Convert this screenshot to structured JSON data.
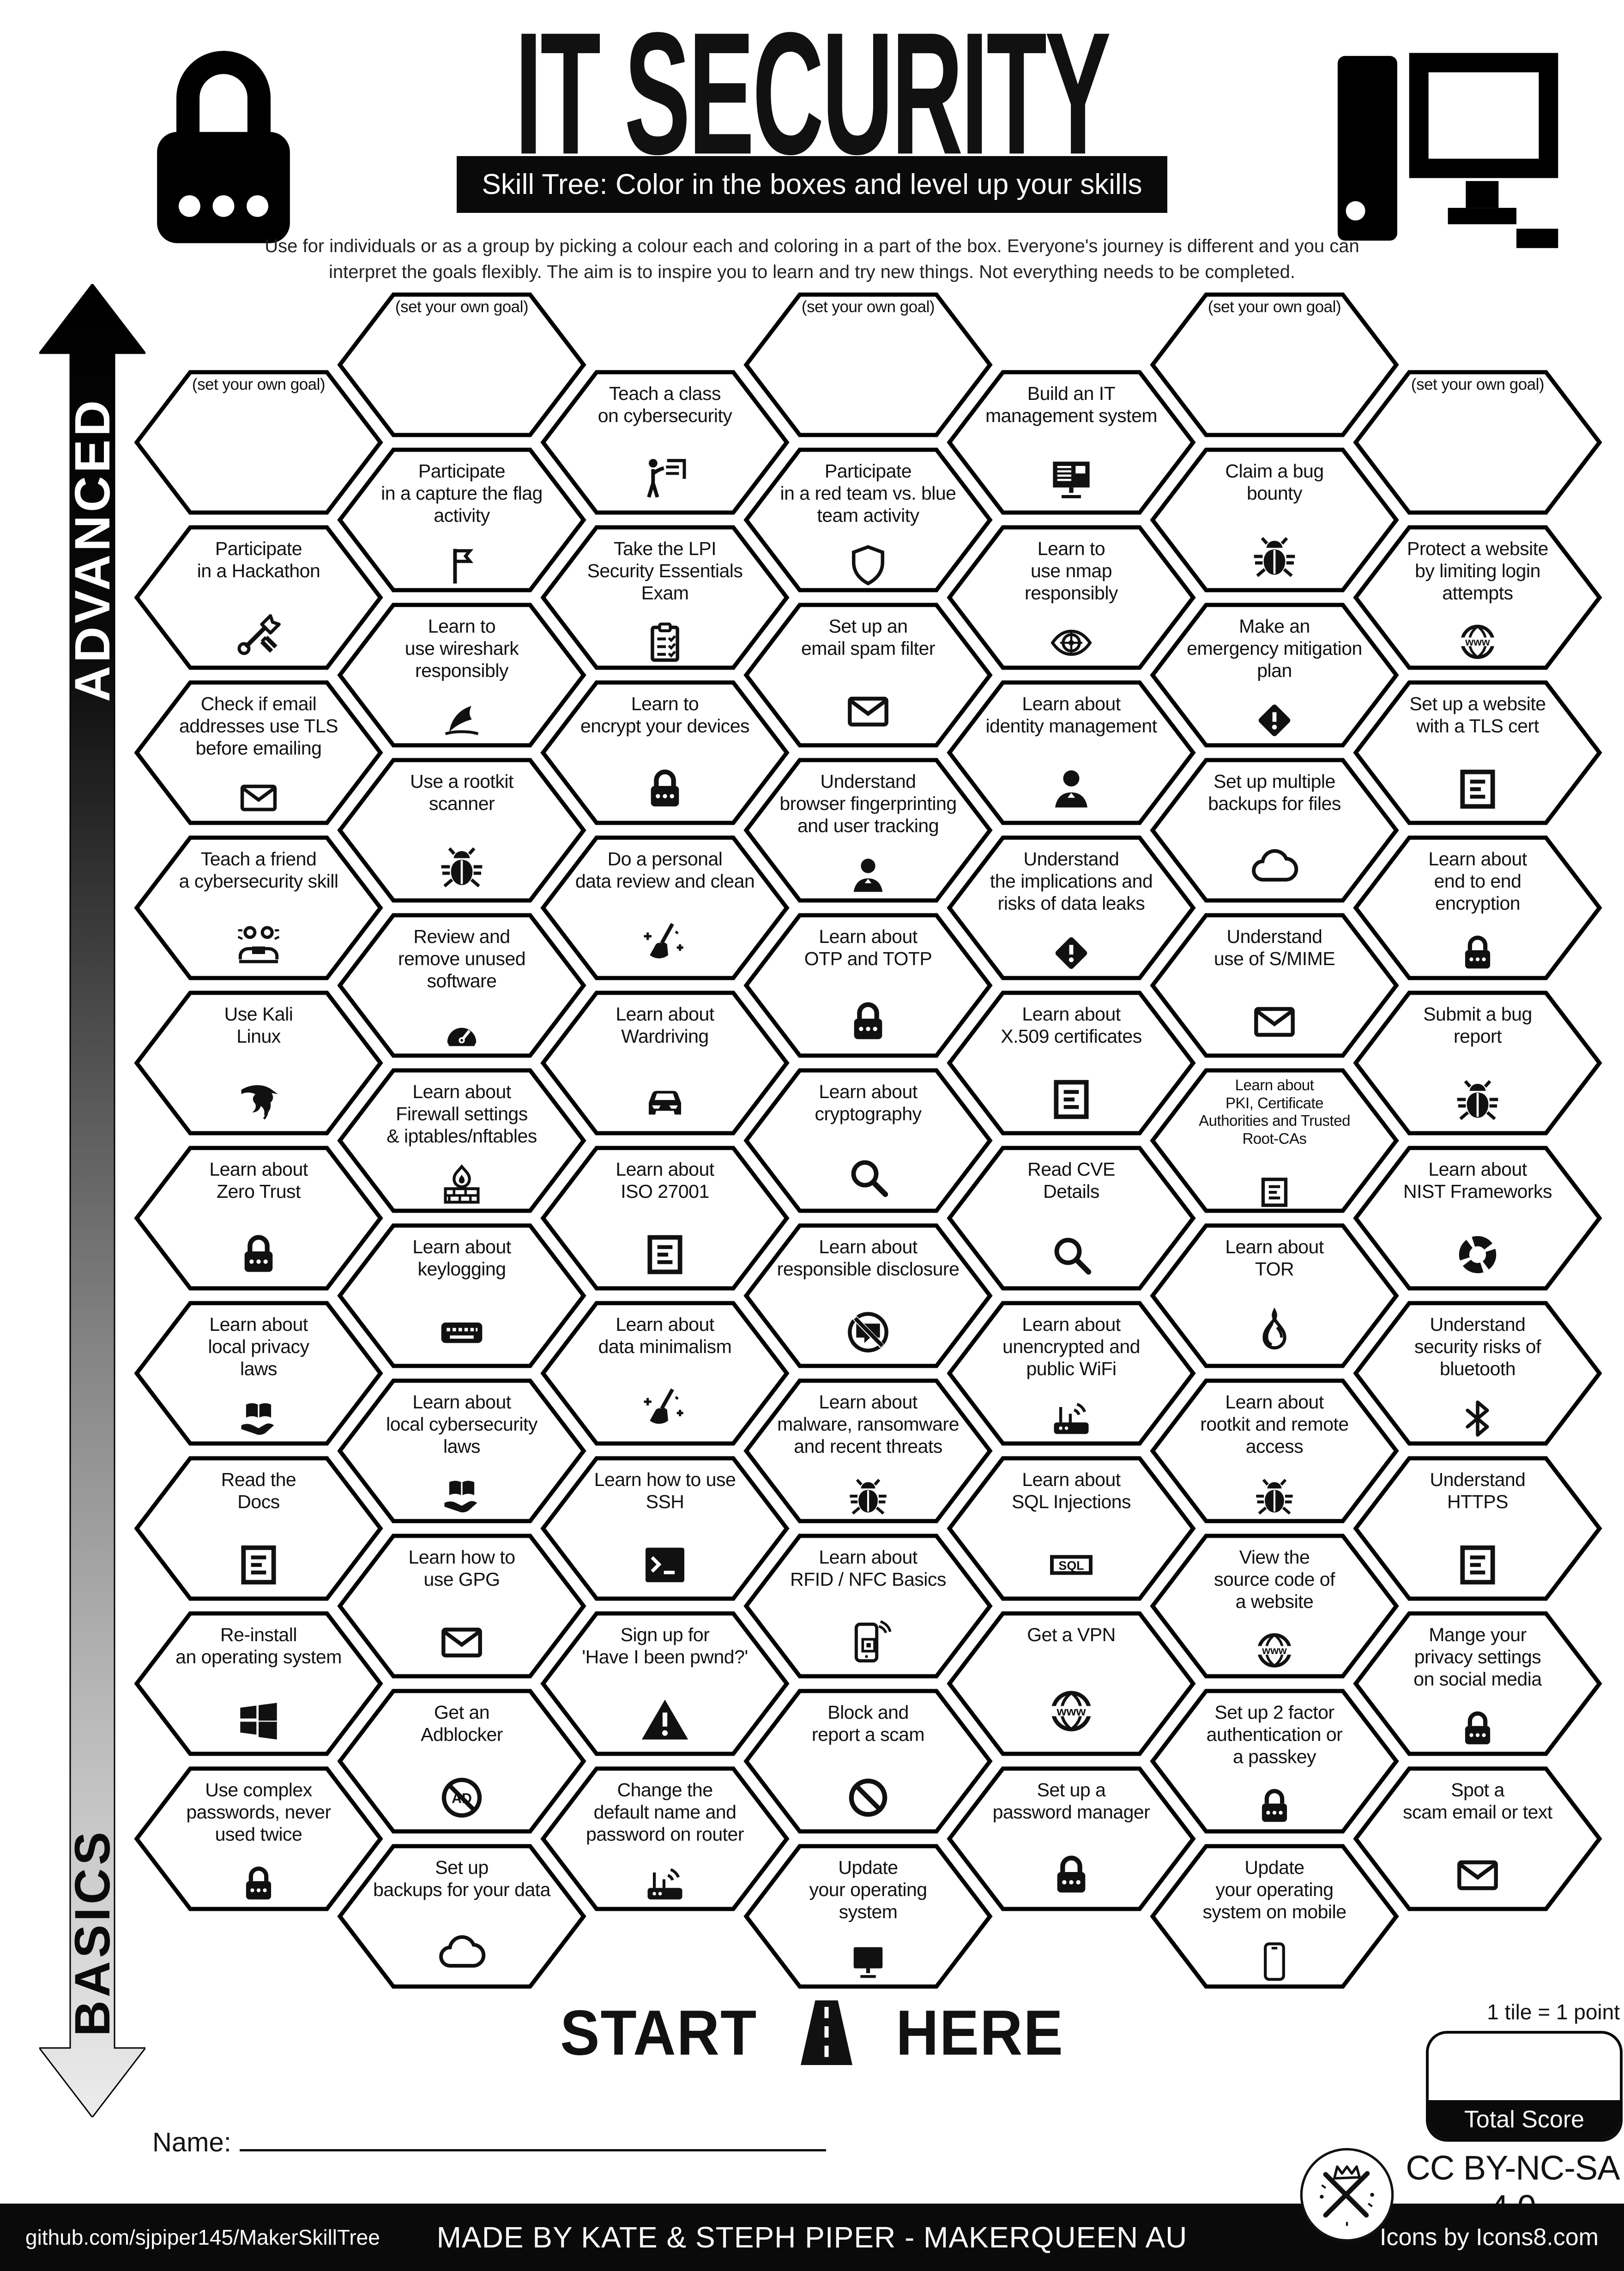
{
  "header": {
    "title": "IT SECURITY",
    "banner": "Skill Tree:  Color in the boxes and level up your skills",
    "description": "Use for individuals or as a group by picking a colour each and coloring in a part of the box.  Everyone's journey is different and you can\ninterpret the goals flexibly.  The aim is to inspire you to learn and try new things. Not everything needs to be completed."
  },
  "axis": {
    "advanced": "ADVANCED",
    "basics": "BASICS"
  },
  "columns": [
    {
      "tiles": [
        {
          "label": "(set your own goal)",
          "goal": true
        },
        {
          "label": "Participate\nin a Hackathon",
          "icon": "tools"
        },
        {
          "label": "Check if email\naddresses use TLS\nbefore emailing",
          "icon": "envelope"
        },
        {
          "label": "Teach a friend\na cybersecurity skill",
          "icon": "people"
        },
        {
          "label": "Use Kali\nLinux",
          "icon": "kali"
        },
        {
          "label": "Learn about\nZero Trust",
          "icon": "lock"
        },
        {
          "label": "Learn about\nlocal privacy\nlaws",
          "icon": "book-hand"
        },
        {
          "label": "Read the\nDocs",
          "icon": "document"
        },
        {
          "label": "Re-install\nan operating system",
          "icon": "windows"
        },
        {
          "label": "Use complex\npasswords, never\nused twice",
          "icon": "lock"
        }
      ]
    },
    {
      "tiles": [
        {
          "label": "(set your own goal)",
          "goal": true
        },
        {
          "label": "Participate\nin a capture the flag\nactivity",
          "icon": "flag"
        },
        {
          "label": "Learn to\nuse wireshark\nresponsibly",
          "icon": "shark"
        },
        {
          "label": "Use a rootkit\nscanner",
          "icon": "bug"
        },
        {
          "label": "Review and\nremove unused\nsoftware",
          "icon": "gauge"
        },
        {
          "label": "Learn about\nFirewall settings\n& iptables/nftables",
          "icon": "firewall"
        },
        {
          "label": "Learn about\nkeylogging",
          "icon": "keyboard"
        },
        {
          "label": "Learn about\nlocal cybersecurity\nlaws",
          "icon": "book-hand"
        },
        {
          "label": "Learn how to\nuse GPG",
          "icon": "envelope"
        },
        {
          "label": "Get an\nAdblocker",
          "icon": "adblock"
        },
        {
          "label": "Set up\nbackups for your data",
          "icon": "cloud"
        }
      ]
    },
    {
      "tiles": [
        {
          "label": "Teach a class\non cybersecurity",
          "icon": "teacher"
        },
        {
          "label": "Take the LPI\nSecurity Essentials\nExam",
          "icon": "clipboard"
        },
        {
          "label": "Learn to\nencrypt your devices",
          "icon": "lock"
        },
        {
          "label": "Do a personal\ndata review and clean",
          "icon": "broom"
        },
        {
          "label": "Learn about\nWardriving",
          "icon": "car"
        },
        {
          "label": "Learn about\nISO 27001",
          "icon": "document"
        },
        {
          "label": "Learn about\ndata minimalism",
          "icon": "broom"
        },
        {
          "label": "Learn how to use\nSSH",
          "icon": "terminal"
        },
        {
          "label": "Sign up for\n'Have I been pwnd?'",
          "icon": "warning-triangle"
        },
        {
          "label": "Change the\ndefault name and\npassword on router",
          "icon": "router"
        }
      ]
    },
    {
      "tiles": [
        {
          "label": "(set your own goal)",
          "goal": true
        },
        {
          "label": "Participate\nin a red team vs. blue\nteam activity",
          "icon": "shield"
        },
        {
          "label": "Set up an\nemail spam filter",
          "icon": "envelope"
        },
        {
          "label": "Understand\nbrowser fingerprinting\nand user tracking",
          "icon": "person"
        },
        {
          "label": "Learn about\nOTP and TOTP",
          "icon": "lock"
        },
        {
          "label": "Learn about\ncryptography",
          "icon": "magnifier"
        },
        {
          "label": "Learn about\nresponsible disclosure",
          "icon": "no-chat"
        },
        {
          "label": "Learn about\nmalware, ransomware\nand recent threats",
          "icon": "bug"
        },
        {
          "label": "Learn about\nRFID / NFC Basics",
          "icon": "rfid"
        },
        {
          "label": "Block and\nreport a scam",
          "icon": "block"
        },
        {
          "label": "Update\nyour operating\nsystem",
          "icon": "monitor"
        }
      ]
    },
    {
      "tiles": [
        {
          "label": "Build an IT\nmanagement system",
          "icon": "monitor-lines"
        },
        {
          "label": "Learn to\nuse nmap\nresponsibly",
          "icon": "eye-target"
        },
        {
          "label": "Learn about\nidentity management",
          "icon": "person"
        },
        {
          "label": "Understand\nthe implications and\nrisks of data leaks",
          "icon": "warning-diamond"
        },
        {
          "label": "Learn about\nX.509 certificates",
          "icon": "document"
        },
        {
          "label": "Read CVE\nDetails",
          "icon": "magnifier"
        },
        {
          "label": "Learn about\nunencrypted and\npublic WiFi",
          "icon": "router"
        },
        {
          "label": "Learn about\nSQL Injections",
          "icon": "sql"
        },
        {
          "label": "Get a VPN",
          "icon": "globe"
        },
        {
          "label": "Set up a\npassword manager",
          "icon": "lock"
        }
      ]
    },
    {
      "tiles": [
        {
          "label": "(set your own goal)",
          "goal": true
        },
        {
          "label": "Claim a bug\nbounty",
          "icon": "bug"
        },
        {
          "label": "Make an\nemergency mitigation\nplan",
          "icon": "warning-diamond"
        },
        {
          "label": "Set up multiple\nbackups for files",
          "icon": "cloud"
        },
        {
          "label": "Understand\nuse of S/MIME",
          "icon": "envelope"
        },
        {
          "label": "Learn about\nPKI, Certificate\nAuthorities and Trusted\nRoot-CAs",
          "icon": "document"
        },
        {
          "label": "Learn about\nTOR",
          "icon": "onion"
        },
        {
          "label": "Learn about\nrootkit and remote\naccess",
          "icon": "bug"
        },
        {
          "label": "View the\nsource code of\na website",
          "icon": "globe"
        },
        {
          "label": "Set up 2 factor\nauthentication or\na passkey",
          "icon": "lock"
        },
        {
          "label": "Update\nyour operating\nsystem on mobile",
          "icon": "smartphone"
        }
      ]
    },
    {
      "tiles": [
        {
          "label": "(set your own goal)",
          "goal": true
        },
        {
          "label": "Protect a website\nby limiting login\nattempts",
          "icon": "globe"
        },
        {
          "label": "Set up a website\nwith a TLS cert",
          "icon": "document"
        },
        {
          "label": "Learn about\nend to end\nencryption",
          "icon": "lock"
        },
        {
          "label": "Submit a bug\nreport",
          "icon": "bug"
        },
        {
          "label": "Learn about\nNIST Frameworks",
          "icon": "donut"
        },
        {
          "label": "Understand\nsecurity risks of\nbluetooth",
          "icon": "bluetooth"
        },
        {
          "label": "Understand\nHTTPS",
          "icon": "document"
        },
        {
          "label": "Mange your\nprivacy settings\non social media",
          "icon": "lock"
        },
        {
          "label": "Spot a\nscam email or text",
          "icon": "envelope"
        }
      ]
    }
  ],
  "start": {
    "start_label": "START",
    "here_label": "HERE"
  },
  "name_label": "Name:",
  "score": {
    "tile_point": "1 tile = 1 point",
    "total": "Total Score"
  },
  "license": "CC BY-NC-SA 4.0",
  "footer": {
    "github": "github.com/sjpiper145/MakerSkillTree",
    "made_by": "MADE BY KATE & STEPH PIPER  -  MAKERQUEEN AU",
    "icons_credit": "Icons by Icons8.com"
  }
}
